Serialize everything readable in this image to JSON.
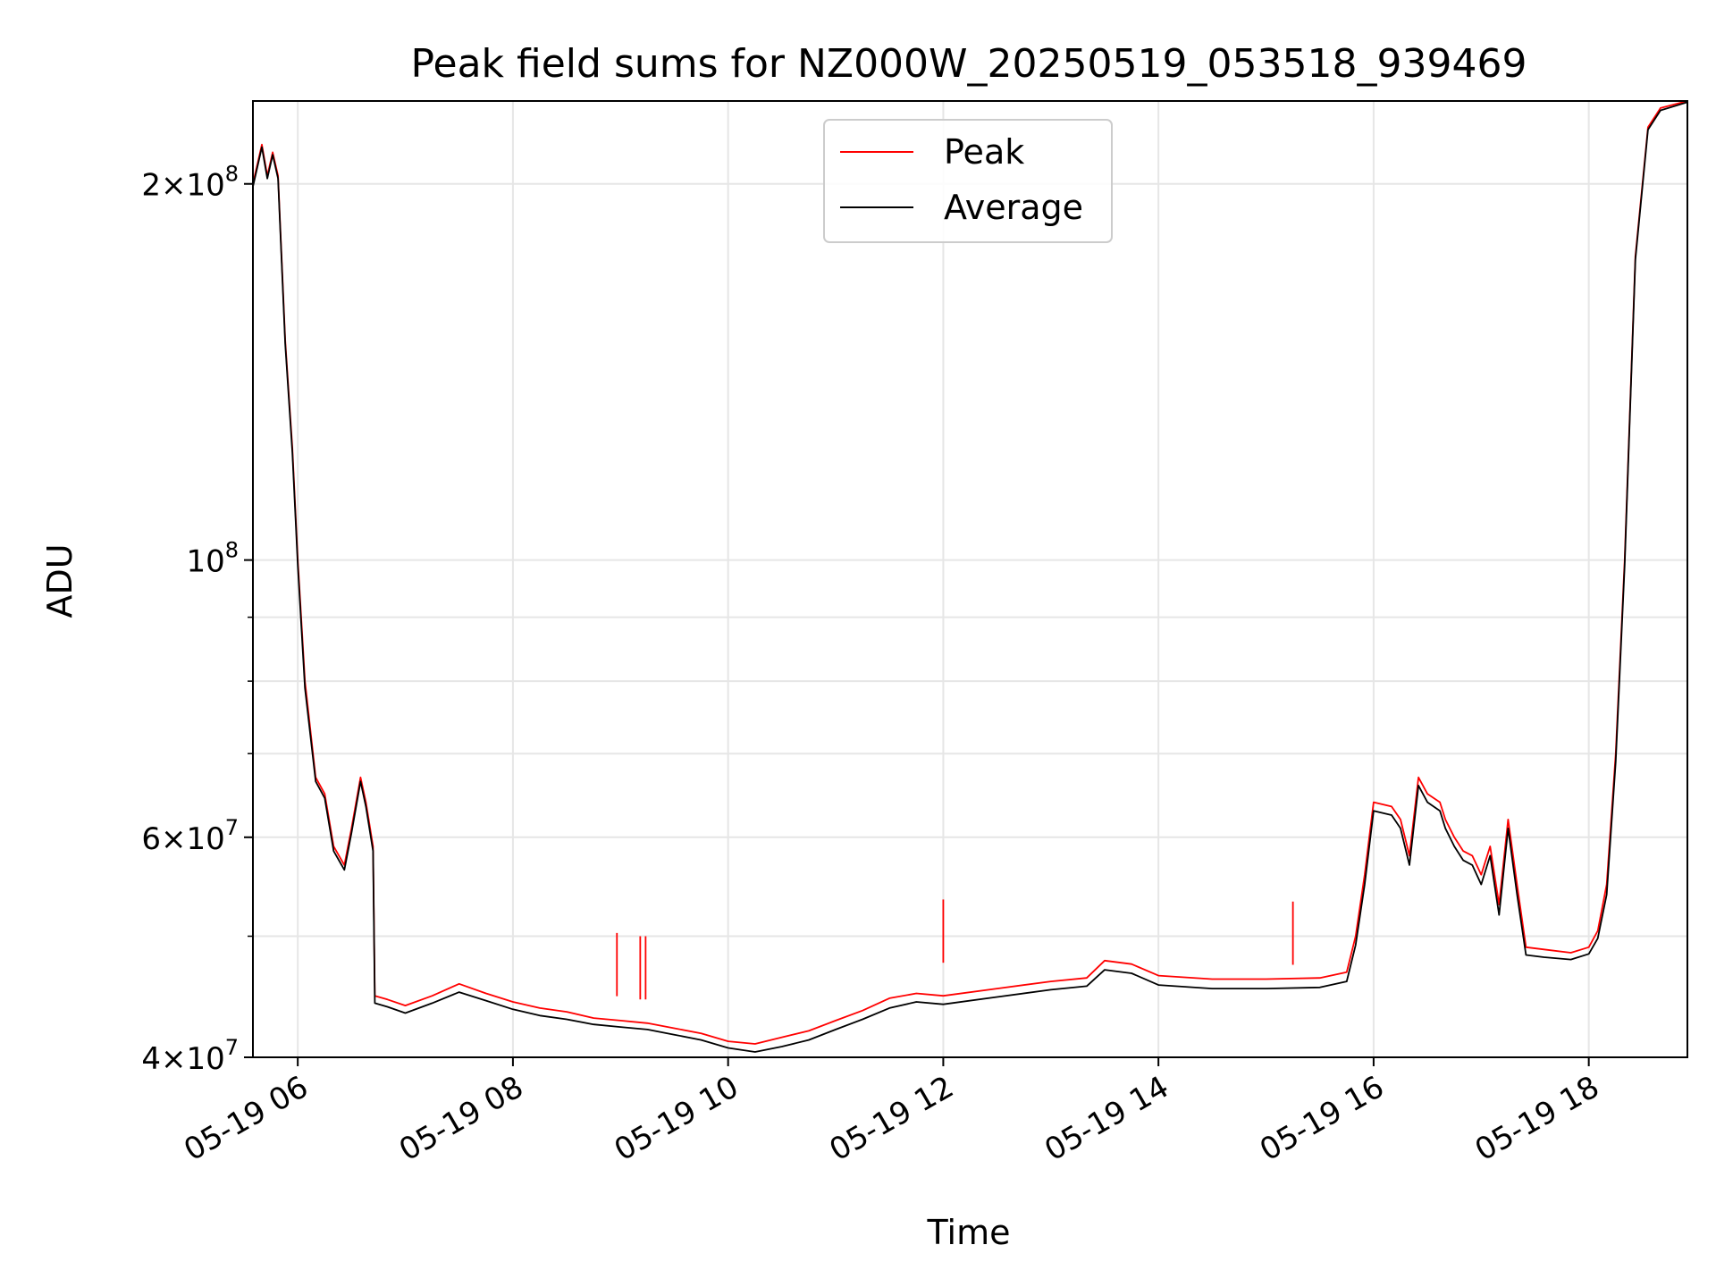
{
  "chart_data": {
    "type": "line",
    "title": "Peak field sums for NZ000W_20250519_053518_939469",
    "xlabel": "Time",
    "ylabel": "ADU",
    "y_scale": "log",
    "ylim": [
      40000000,
      233000000
    ],
    "xlim": [
      "2025-05-19 05:35",
      "2025-05-19 18:55"
    ],
    "grid": true,
    "legend_position": "top-center",
    "x_ticks": [
      {
        "t": "2025-05-19 06:00",
        "label": "05-19 06"
      },
      {
        "t": "2025-05-19 08:00",
        "label": "05-19 08"
      },
      {
        "t": "2025-05-19 10:00",
        "label": "05-19 10"
      },
      {
        "t": "2025-05-19 12:00",
        "label": "05-19 12"
      },
      {
        "t": "2025-05-19 14:00",
        "label": "05-19 14"
      },
      {
        "t": "2025-05-19 16:00",
        "label": "05-19 16"
      },
      {
        "t": "2025-05-19 18:00",
        "label": "05-19 18"
      }
    ],
    "y_major_ticks": [
      {
        "v": 40000000,
        "base": "4",
        "exp": "7"
      },
      {
        "v": 60000000,
        "base": "6",
        "exp": "7"
      },
      {
        "v": 100000000,
        "base": "10",
        "exp": "8"
      },
      {
        "v": 200000000,
        "base": "2",
        "exp": "8"
      }
    ],
    "y_minor_grid": [
      50000000,
      70000000,
      80000000,
      90000000
    ],
    "series": [
      {
        "name": "Peak",
        "color": "#ff0000",
        "points": [
          [
            "2025-05-19 05:35",
            200000000
          ],
          [
            "2025-05-19 05:40",
            215000000
          ],
          [
            "2025-05-19 05:43",
            203000000
          ],
          [
            "2025-05-19 05:46",
            212000000
          ],
          [
            "2025-05-19 05:49",
            203000000
          ],
          [
            "2025-05-19 05:53",
            150000000
          ],
          [
            "2025-05-19 05:57",
            123000000
          ],
          [
            "2025-05-19 06:00",
            100000000
          ],
          [
            "2025-05-19 06:04",
            80000000
          ],
          [
            "2025-05-19 06:10",
            67000000
          ],
          [
            "2025-05-19 06:15",
            65000000
          ],
          [
            "2025-05-19 06:20",
            59000000
          ],
          [
            "2025-05-19 06:26",
            57000000
          ],
          [
            "2025-05-19 06:30",
            61000000
          ],
          [
            "2025-05-19 06:35",
            67000000
          ],
          [
            "2025-05-19 06:38",
            64000000
          ],
          [
            "2025-05-19 06:42",
            59000000
          ],
          [
            "2025-05-19 06:43",
            44800000
          ],
          [
            "2025-05-19 06:50",
            44500000
          ],
          [
            "2025-05-19 07:00",
            44000000
          ],
          [
            "2025-05-19 07:15",
            44800000
          ],
          [
            "2025-05-19 07:30",
            45800000
          ],
          [
            "2025-05-19 07:45",
            45000000
          ],
          [
            "2025-05-19 08:00",
            44300000
          ],
          [
            "2025-05-19 08:15",
            43800000
          ],
          [
            "2025-05-19 08:30",
            43500000
          ],
          [
            "2025-05-19 08:45",
            43000000
          ],
          [
            "2025-05-19 09:00",
            42800000
          ],
          [
            "2025-05-19 09:15",
            42600000
          ],
          [
            "2025-05-19 09:30",
            42200000
          ],
          [
            "2025-05-19 09:45",
            41800000
          ],
          [
            "2025-05-19 10:00",
            41200000
          ],
          [
            "2025-05-19 10:15",
            41000000
          ],
          [
            "2025-05-19 10:30",
            41500000
          ],
          [
            "2025-05-19 10:45",
            42000000
          ],
          [
            "2025-05-19 11:00",
            42800000
          ],
          [
            "2025-05-19 11:15",
            43600000
          ],
          [
            "2025-05-19 11:30",
            44600000
          ],
          [
            "2025-05-19 11:45",
            45000000
          ],
          [
            "2025-05-19 12:00",
            44800000
          ],
          [
            "2025-05-19 12:30",
            45400000
          ],
          [
            "2025-05-19 13:00",
            46000000
          ],
          [
            "2025-05-19 13:20",
            46300000
          ],
          [
            "2025-05-19 13:30",
            47800000
          ],
          [
            "2025-05-19 13:45",
            47500000
          ],
          [
            "2025-05-19 14:00",
            46500000
          ],
          [
            "2025-05-19 14:30",
            46200000
          ],
          [
            "2025-05-19 15:00",
            46200000
          ],
          [
            "2025-05-19 15:30",
            46300000
          ],
          [
            "2025-05-19 15:45",
            46800000
          ],
          [
            "2025-05-19 15:50",
            50000000
          ],
          [
            "2025-05-19 15:55",
            56000000
          ],
          [
            "2025-05-19 16:00",
            64000000
          ],
          [
            "2025-05-19 16:10",
            63500000
          ],
          [
            "2025-05-19 16:15",
            62000000
          ],
          [
            "2025-05-19 16:20",
            58000000
          ],
          [
            "2025-05-19 16:25",
            67000000
          ],
          [
            "2025-05-19 16:30",
            65000000
          ],
          [
            "2025-05-19 16:37",
            64000000
          ],
          [
            "2025-05-19 16:40",
            62000000
          ],
          [
            "2025-05-19 16:45",
            60000000
          ],
          [
            "2025-05-19 16:50",
            58500000
          ],
          [
            "2025-05-19 16:55",
            58000000
          ],
          [
            "2025-05-19 17:00",
            56000000
          ],
          [
            "2025-05-19 17:05",
            59000000
          ],
          [
            "2025-05-19 17:10",
            53000000
          ],
          [
            "2025-05-19 17:15",
            62000000
          ],
          [
            "2025-05-19 17:20",
            55000000
          ],
          [
            "2025-05-19 17:25",
            49000000
          ],
          [
            "2025-05-19 17:35",
            48800000
          ],
          [
            "2025-05-19 17:50",
            48500000
          ],
          [
            "2025-05-19 18:00",
            49000000
          ],
          [
            "2025-05-19 18:05",
            50500000
          ],
          [
            "2025-05-19 18:10",
            55000000
          ],
          [
            "2025-05-19 18:15",
            70000000
          ],
          [
            "2025-05-19 18:20",
            100000000
          ],
          [
            "2025-05-19 18:26",
            175000000
          ],
          [
            "2025-05-19 18:33",
            222000000
          ],
          [
            "2025-05-19 18:40",
            230000000
          ],
          [
            "2025-05-19 18:55",
            233000000
          ]
        ],
        "spikes": [
          [
            "2025-05-19 08:58",
            50300000
          ],
          [
            "2025-05-19 09:11",
            50000000
          ],
          [
            "2025-05-19 09:14",
            50000000
          ],
          [
            "2025-05-19 12:00",
            53500000
          ],
          [
            "2025-05-19 15:15",
            53300000
          ]
        ]
      },
      {
        "name": "Average",
        "color": "#000000",
        "points": [
          [
            "2025-05-19 05:35",
            199000000
          ],
          [
            "2025-05-19 05:40",
            214000000
          ],
          [
            "2025-05-19 05:43",
            202000000
          ],
          [
            "2025-05-19 05:46",
            211000000
          ],
          [
            "2025-05-19 05:49",
            202000000
          ],
          [
            "2025-05-19 05:53",
            149000000
          ],
          [
            "2025-05-19 05:57",
            122000000
          ],
          [
            "2025-05-19 06:00",
            99000000
          ],
          [
            "2025-05-19 06:04",
            79000000
          ],
          [
            "2025-05-19 06:10",
            66500000
          ],
          [
            "2025-05-19 06:15",
            64500000
          ],
          [
            "2025-05-19 06:20",
            58500000
          ],
          [
            "2025-05-19 06:26",
            56500000
          ],
          [
            "2025-05-19 06:30",
            60500000
          ],
          [
            "2025-05-19 06:35",
            66500000
          ],
          [
            "2025-05-19 06:38",
            63500000
          ],
          [
            "2025-05-19 06:42",
            58500000
          ],
          [
            "2025-05-19 06:43",
            44200000
          ],
          [
            "2025-05-19 06:50",
            43900000
          ],
          [
            "2025-05-19 07:00",
            43400000
          ],
          [
            "2025-05-19 07:15",
            44200000
          ],
          [
            "2025-05-19 07:30",
            45100000
          ],
          [
            "2025-05-19 07:45",
            44400000
          ],
          [
            "2025-05-19 08:00",
            43700000
          ],
          [
            "2025-05-19 08:15",
            43200000
          ],
          [
            "2025-05-19 08:30",
            42900000
          ],
          [
            "2025-05-19 08:45",
            42500000
          ],
          [
            "2025-05-19 09:00",
            42300000
          ],
          [
            "2025-05-19 09:15",
            42100000
          ],
          [
            "2025-05-19 09:30",
            41700000
          ],
          [
            "2025-05-19 09:45",
            41300000
          ],
          [
            "2025-05-19 10:00",
            40700000
          ],
          [
            "2025-05-19 10:15",
            40400000
          ],
          [
            "2025-05-19 10:30",
            40800000
          ],
          [
            "2025-05-19 10:45",
            41300000
          ],
          [
            "2025-05-19 11:00",
            42100000
          ],
          [
            "2025-05-19 11:15",
            42900000
          ],
          [
            "2025-05-19 11:30",
            43800000
          ],
          [
            "2025-05-19 11:45",
            44300000
          ],
          [
            "2025-05-19 12:00",
            44100000
          ],
          [
            "2025-05-19 12:30",
            44700000
          ],
          [
            "2025-05-19 13:00",
            45300000
          ],
          [
            "2025-05-19 13:20",
            45600000
          ],
          [
            "2025-05-19 13:30",
            47000000
          ],
          [
            "2025-05-19 13:45",
            46700000
          ],
          [
            "2025-05-19 14:00",
            45700000
          ],
          [
            "2025-05-19 14:30",
            45400000
          ],
          [
            "2025-05-19 15:00",
            45400000
          ],
          [
            "2025-05-19 15:30",
            45500000
          ],
          [
            "2025-05-19 15:45",
            46000000
          ],
          [
            "2025-05-19 15:50",
            49200000
          ],
          [
            "2025-05-19 15:55",
            55000000
          ],
          [
            "2025-05-19 16:00",
            63000000
          ],
          [
            "2025-05-19 16:10",
            62500000
          ],
          [
            "2025-05-19 16:15",
            61000000
          ],
          [
            "2025-05-19 16:20",
            57000000
          ],
          [
            "2025-05-19 16:25",
            66000000
          ],
          [
            "2025-05-19 16:30",
            64000000
          ],
          [
            "2025-05-19 16:37",
            63000000
          ],
          [
            "2025-05-19 16:40",
            61000000
          ],
          [
            "2025-05-19 16:45",
            59000000
          ],
          [
            "2025-05-19 16:50",
            57500000
          ],
          [
            "2025-05-19 16:55",
            57000000
          ],
          [
            "2025-05-19 17:00",
            55000000
          ],
          [
            "2025-05-19 17:05",
            58000000
          ],
          [
            "2025-05-19 17:10",
            52000000
          ],
          [
            "2025-05-19 17:15",
            61000000
          ],
          [
            "2025-05-19 17:20",
            54000000
          ],
          [
            "2025-05-19 17:25",
            48300000
          ],
          [
            "2025-05-19 17:35",
            48100000
          ],
          [
            "2025-05-19 17:50",
            47900000
          ],
          [
            "2025-05-19 18:00",
            48400000
          ],
          [
            "2025-05-19 18:05",
            49800000
          ],
          [
            "2025-05-19 18:10",
            54000000
          ],
          [
            "2025-05-19 18:15",
            69000000
          ],
          [
            "2025-05-19 18:20",
            99000000
          ],
          [
            "2025-05-19 18:26",
            174000000
          ],
          [
            "2025-05-19 18:33",
            221000000
          ],
          [
            "2025-05-19 18:40",
            229000000
          ],
          [
            "2025-05-19 18:55",
            232500000
          ]
        ],
        "spikes": []
      }
    ]
  }
}
